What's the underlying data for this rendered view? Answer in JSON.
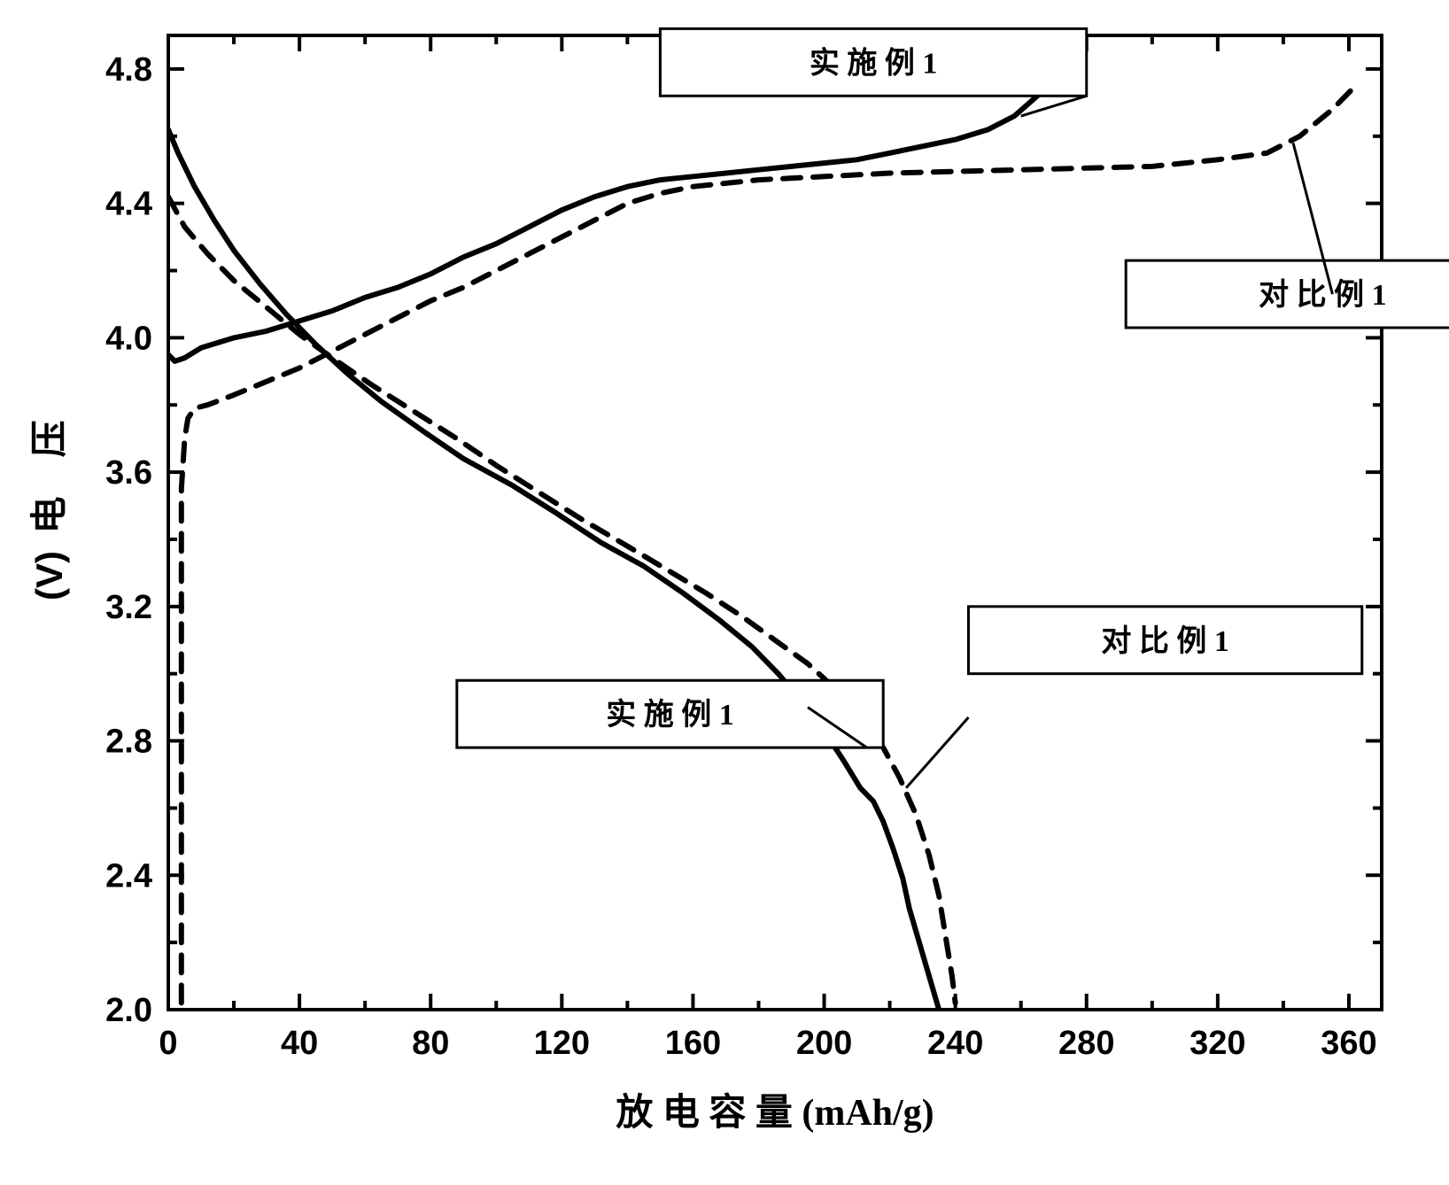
{
  "chart": {
    "type": "line",
    "background_color": "#ffffff",
    "axis_color": "#000000",
    "axis_width": 4,
    "tick_width": 4,
    "tick_len_major": 18,
    "tick_len_minor": 10,
    "xlabel": "放 电 容 量  (mAh/g)",
    "ylabel_cn": "电 压",
    "ylabel_unit": "(V)",
    "xlabel_fontsize": 42,
    "ylabel_fontsize": 42,
    "tick_fontsize": 38,
    "xlim": [
      0,
      370
    ],
    "ylim": [
      2.0,
      4.9
    ],
    "xticks_major": [
      0,
      40,
      80,
      120,
      160,
      200,
      240,
      280,
      320,
      360
    ],
    "xticks_minor": [
      20,
      60,
      100,
      140,
      180,
      220,
      260,
      300,
      340
    ],
    "yticks_major": [
      2.0,
      2.4,
      2.8,
      3.2,
      3.6,
      4.0,
      4.4,
      4.8
    ],
    "yticks_minor": [
      2.2,
      2.6,
      3.0,
      3.4,
      3.8,
      4.2,
      4.6
    ],
    "legend_fontsize": 34,
    "series": {
      "charge_solid": {
        "label": "实 施 例 1",
        "color": "#000000",
        "width": 6,
        "dash": "none",
        "data": [
          [
            0,
            3.95
          ],
          [
            2,
            3.93
          ],
          [
            5,
            3.94
          ],
          [
            10,
            3.97
          ],
          [
            20,
            4.0
          ],
          [
            30,
            4.02
          ],
          [
            40,
            4.05
          ],
          [
            50,
            4.08
          ],
          [
            60,
            4.12
          ],
          [
            70,
            4.15
          ],
          [
            80,
            4.19
          ],
          [
            90,
            4.24
          ],
          [
            100,
            4.28
          ],
          [
            110,
            4.33
          ],
          [
            120,
            4.38
          ],
          [
            130,
            4.42
          ],
          [
            140,
            4.45
          ],
          [
            150,
            4.47
          ],
          [
            160,
            4.48
          ],
          [
            170,
            4.49
          ],
          [
            180,
            4.5
          ],
          [
            190,
            4.51
          ],
          [
            200,
            4.52
          ],
          [
            210,
            4.53
          ],
          [
            220,
            4.55
          ],
          [
            230,
            4.57
          ],
          [
            240,
            4.59
          ],
          [
            250,
            4.62
          ],
          [
            258,
            4.66
          ],
          [
            265,
            4.72
          ],
          [
            272,
            4.78
          ],
          [
            276,
            4.82
          ]
        ],
        "legend_box": {
          "x": 150,
          "y": 4.72,
          "w": 130,
          "h": 0.2
        },
        "leader_from": [
          260,
          4.66
        ],
        "leader_to": [
          280,
          4.72
        ]
      },
      "charge_dashed": {
        "label": "对 比 例 1",
        "color": "#000000",
        "width": 6,
        "dash": "20 14",
        "data": [
          [
            4,
            2.02
          ],
          [
            4,
            2.4
          ],
          [
            4,
            2.7
          ],
          [
            4,
            3.0
          ],
          [
            4,
            3.3
          ],
          [
            4,
            3.55
          ],
          [
            5,
            3.7
          ],
          [
            6,
            3.76
          ],
          [
            8,
            3.79
          ],
          [
            12,
            3.8
          ],
          [
            20,
            3.83
          ],
          [
            30,
            3.87
          ],
          [
            40,
            3.91
          ],
          [
            50,
            3.96
          ],
          [
            60,
            4.01
          ],
          [
            70,
            4.06
          ],
          [
            80,
            4.11
          ],
          [
            90,
            4.15
          ],
          [
            100,
            4.2
          ],
          [
            110,
            4.25
          ],
          [
            120,
            4.3
          ],
          [
            130,
            4.35
          ],
          [
            140,
            4.4
          ],
          [
            150,
            4.43
          ],
          [
            160,
            4.45
          ],
          [
            170,
            4.46
          ],
          [
            180,
            4.47
          ],
          [
            200,
            4.48
          ],
          [
            220,
            4.49
          ],
          [
            240,
            4.495
          ],
          [
            260,
            4.5
          ],
          [
            280,
            4.505
          ],
          [
            300,
            4.51
          ],
          [
            320,
            4.53
          ],
          [
            335,
            4.55
          ],
          [
            345,
            4.6
          ],
          [
            355,
            4.68
          ],
          [
            363,
            4.76
          ]
        ],
        "legend_box": {
          "x": 292,
          "y": 4.03,
          "w": 120,
          "h": 0.2
        },
        "leader_from": [
          343,
          4.58
        ],
        "leader_to": [
          355,
          4.13
        ]
      },
      "discharge_solid": {
        "label": "实 施 例 1",
        "color": "#000000",
        "width": 6,
        "dash": "none",
        "data": [
          [
            0,
            4.62
          ],
          [
            3,
            4.55
          ],
          [
            8,
            4.45
          ],
          [
            14,
            4.35
          ],
          [
            20,
            4.26
          ],
          [
            28,
            4.16
          ],
          [
            36,
            4.07
          ],
          [
            45,
            3.98
          ],
          [
            55,
            3.89
          ],
          [
            65,
            3.81
          ],
          [
            78,
            3.72
          ],
          [
            90,
            3.64
          ],
          [
            105,
            3.56
          ],
          [
            118,
            3.48
          ],
          [
            132,
            3.39
          ],
          [
            145,
            3.32
          ],
          [
            157,
            3.24
          ],
          [
            168,
            3.16
          ],
          [
            178,
            3.08
          ],
          [
            186,
            3.0
          ],
          [
            193,
            2.92
          ],
          [
            200,
            2.83
          ],
          [
            206,
            2.74
          ],
          [
            211,
            2.66
          ],
          [
            215,
            2.62
          ],
          [
            218,
            2.56
          ],
          [
            221,
            2.48
          ],
          [
            224,
            2.39
          ],
          [
            226,
            2.3
          ],
          [
            229,
            2.2
          ],
          [
            232,
            2.1
          ],
          [
            235,
            2.0
          ]
        ],
        "legend_box": {
          "x": 88,
          "y": 2.78,
          "w": 130,
          "h": 0.2
        },
        "leader_from": [
          195,
          2.9
        ],
        "leader_to": [
          213,
          2.78
        ]
      },
      "discharge_dashed": {
        "label": "对 比 例 1",
        "color": "#000000",
        "width": 6,
        "dash": "20 14",
        "data": [
          [
            0,
            4.42
          ],
          [
            5,
            4.33
          ],
          [
            12,
            4.25
          ],
          [
            20,
            4.17
          ],
          [
            30,
            4.09
          ],
          [
            40,
            4.01
          ],
          [
            50,
            3.94
          ],
          [
            62,
            3.86
          ],
          [
            75,
            3.78
          ],
          [
            88,
            3.7
          ],
          [
            100,
            3.62
          ],
          [
            113,
            3.54
          ],
          [
            126,
            3.46
          ],
          [
            140,
            3.38
          ],
          [
            152,
            3.31
          ],
          [
            164,
            3.24
          ],
          [
            175,
            3.17
          ],
          [
            185,
            3.1
          ],
          [
            195,
            3.03
          ],
          [
            204,
            2.95
          ],
          [
            212,
            2.86
          ],
          [
            218,
            2.78
          ],
          [
            223,
            2.69
          ],
          [
            228,
            2.58
          ],
          [
            232,
            2.46
          ],
          [
            235,
            2.34
          ],
          [
            237,
            2.22
          ],
          [
            239,
            2.1
          ],
          [
            240,
            2.02
          ]
        ],
        "legend_box": {
          "x": 244,
          "y": 3.0,
          "w": 120,
          "h": 0.2
        },
        "leader_from": [
          225,
          2.66
        ],
        "leader_to": [
          244,
          2.87
        ]
      }
    }
  }
}
